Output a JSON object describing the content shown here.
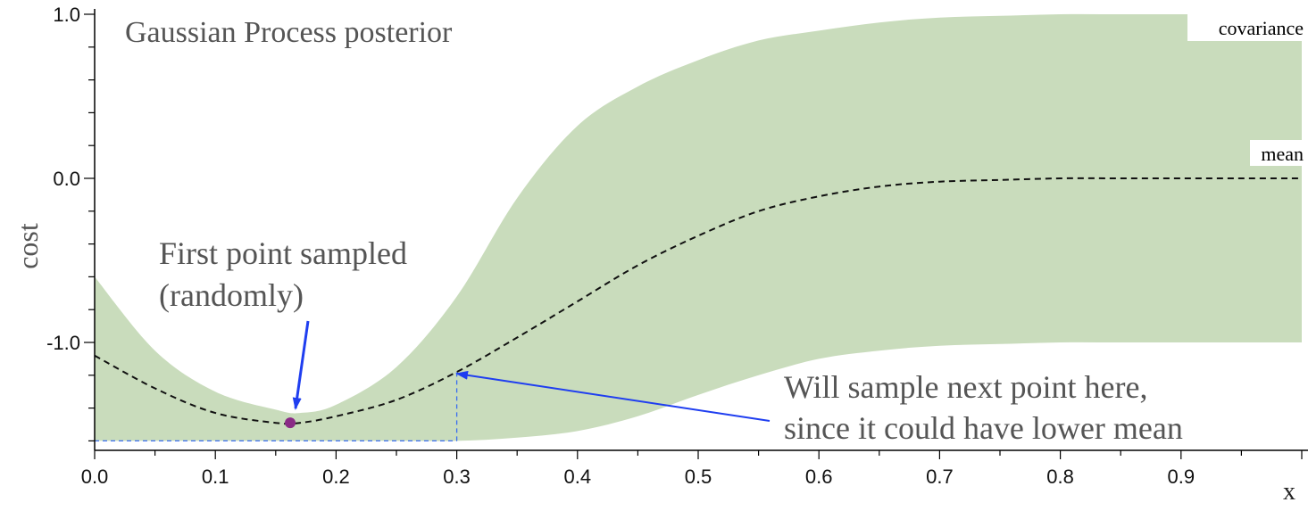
{
  "chart_data": {
    "type": "area",
    "title": "Gaussian Process posterior",
    "xlabel": "x",
    "ylabel": "cost",
    "xlim": [
      0.0,
      1.0
    ],
    "ylim": [
      -1.65,
      1.02
    ],
    "x_ticks": [
      "0.0",
      "0.1",
      "0.2",
      "0.3",
      "0.4",
      "0.5",
      "0.6",
      "0.7",
      "0.8",
      "0.9"
    ],
    "y_ticks": [
      "1.0",
      "0.0",
      "-1.0"
    ],
    "grid": false,
    "series": [
      {
        "name": "mean",
        "style": "dashed",
        "x": [
          0.0,
          0.05,
          0.1,
          0.15,
          0.17,
          0.2,
          0.25,
          0.3,
          0.35,
          0.4,
          0.45,
          0.5,
          0.55,
          0.6,
          0.65,
          0.7,
          0.75,
          0.8,
          0.85,
          0.9,
          0.95,
          1.0
        ],
        "y": [
          -1.08,
          -1.28,
          -1.43,
          -1.49,
          -1.49,
          -1.45,
          -1.35,
          -1.18,
          -0.97,
          -0.75,
          -0.53,
          -0.35,
          -0.2,
          -0.11,
          -0.05,
          -0.02,
          -0.01,
          0.0,
          0.0,
          0.0,
          0.0,
          0.0
        ]
      },
      {
        "name": "covariance",
        "x": [
          0.0,
          0.05,
          0.1,
          0.15,
          0.17,
          0.2,
          0.25,
          0.3,
          0.35,
          0.4,
          0.45,
          0.5,
          0.55,
          0.6,
          0.65,
          0.7,
          0.75,
          0.8,
          0.85,
          0.9,
          0.95,
          1.0
        ],
        "upper": [
          -0.6,
          -1.05,
          -1.3,
          -1.41,
          -1.43,
          -1.38,
          -1.15,
          -0.72,
          -0.12,
          0.32,
          0.56,
          0.72,
          0.84,
          0.9,
          0.95,
          0.98,
          0.99,
          1.0,
          1.0,
          1.0,
          1.0,
          1.0
        ],
        "lower": [
          -1.6,
          -1.6,
          -1.6,
          -1.6,
          -1.6,
          -1.6,
          -1.6,
          -1.6,
          -1.58,
          -1.54,
          -1.45,
          -1.32,
          -1.2,
          -1.1,
          -1.05,
          -1.02,
          -1.01,
          -1.0,
          -1.0,
          -1.0,
          -1.0,
          -1.0
        ]
      }
    ],
    "sampled_point": {
      "x": 0.162,
      "y": -1.49
    },
    "next_point": {
      "x": 0.3,
      "y": -1.18
    },
    "baseline_y": -1.6,
    "annotations": [
      "First point sampled",
      "(randomly)",
      "Will sample next point here,",
      "since it could have lower mean"
    ],
    "colors": {
      "band": "#c9dcbc",
      "mean_line": "#111111",
      "sampled_point": "#8a2a86",
      "arrow": "#1f3ef0",
      "guide_line": "#3a6ef0",
      "text": "#555555",
      "axis": "#000000"
    }
  }
}
